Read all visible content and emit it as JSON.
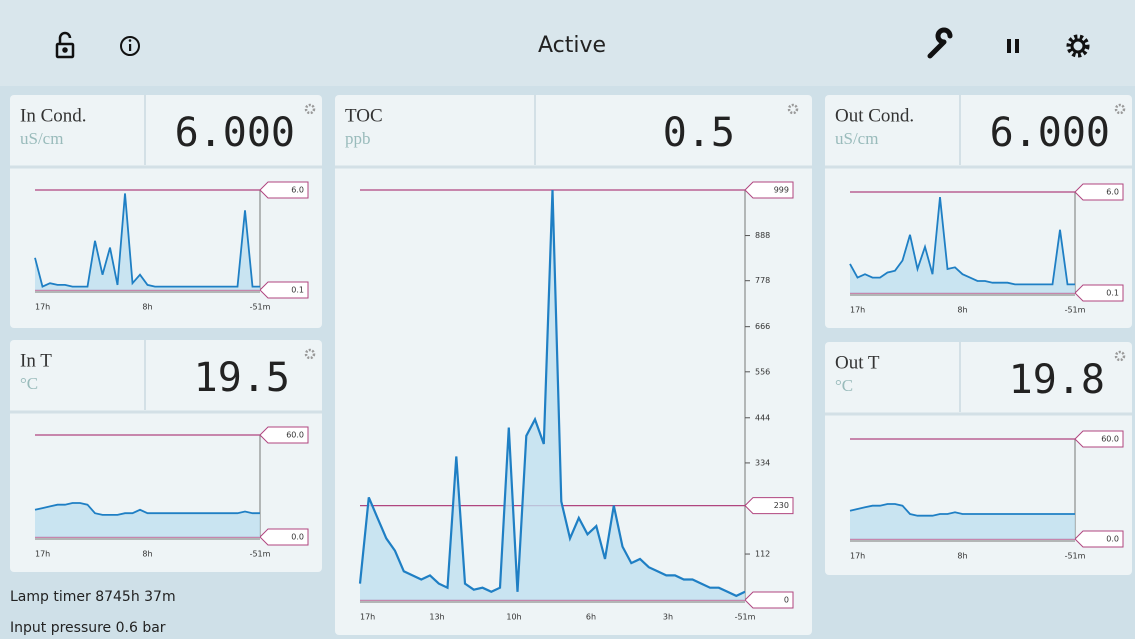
{
  "header": {
    "title": "Active"
  },
  "panels": [
    {
      "label": "In Cond.",
      "unit": "uS/cm",
      "value": "6.000",
      "chart": {
        "type": "line",
        "color": "#1f7fc4",
        "ylim": [
          0.1,
          6.0
        ],
        "yticks": [
          {
            "value": 6.0,
            "label": "6.0"
          },
          0.1
        ],
        "x_labels": [
          "17h",
          "8h",
          "-51m"
        ],
        "values": [
          2.0,
          0.3,
          0.5,
          0.4,
          0.4,
          0.3,
          0.3,
          0.3,
          3.0,
          1.0,
          2.6,
          0.4,
          5.8,
          0.5,
          1.0,
          0.4,
          0.3,
          0.3,
          0.3,
          0.3,
          0.3,
          0.3,
          0.3,
          0.3,
          0.3,
          0.3,
          0.3,
          0.3,
          4.8,
          0.3,
          0.3
        ]
      }
    },
    {
      "label": "In T",
      "unit": "°C",
      "value": "19.5",
      "chart": {
        "type": "line",
        "color": "#1f7fc4",
        "ylim": [
          0,
          60
        ],
        "yticks": [
          {
            "value": 60,
            "label": "60.0"
          },
          {
            "value": 0,
            "label": "0.0"
          }
        ],
        "x_labels": [
          "17h",
          "8h",
          "-51m"
        ],
        "values": [
          16,
          17,
          18,
          19,
          19,
          20,
          20,
          19,
          14,
          13,
          13,
          13,
          14,
          14,
          16,
          14,
          14,
          14,
          14,
          14,
          14,
          14,
          14,
          14,
          14,
          14,
          14,
          14,
          15,
          14,
          14
        ]
      }
    },
    {
      "label": "TOC",
      "unit": "ppb",
      "value": "0.5",
      "chart": {
        "type": "line",
        "color": "#1f7fc4",
        "ylim": [
          0,
          999
        ],
        "yticks": [
          999,
          888,
          778,
          666,
          556,
          444,
          334,
          112,
          0
        ],
        "alarm_limit": 230,
        "x_labels": [
          "17h",
          "13h",
          "10h",
          "6h",
          "3h",
          "-51m"
        ],
        "values": [
          40,
          250,
          200,
          150,
          120,
          70,
          60,
          50,
          60,
          40,
          30,
          350,
          40,
          25,
          30,
          20,
          30,
          420,
          20,
          400,
          440,
          380,
          999,
          240,
          150,
          200,
          160,
          180,
          100,
          230,
          130,
          90,
          100,
          80,
          70,
          60,
          60,
          50,
          50,
          40,
          30,
          30,
          20,
          10,
          20
        ]
      }
    },
    {
      "label": "Out Cond.",
      "unit": "uS/cm",
      "value": "6.000",
      "chart": {
        "type": "line",
        "color": "#1f7fc4",
        "ylim": [
          0.1,
          6.0
        ],
        "yticks": [
          {
            "value": 6.0,
            "label": "6.0"
          },
          0.1
        ],
        "x_labels": [
          "17h",
          "8h",
          "-51m"
        ],
        "values": [
          1.8,
          1.0,
          1.2,
          1.0,
          1.0,
          1.3,
          1.4,
          2.0,
          3.5,
          1.5,
          2.8,
          1.2,
          5.7,
          1.5,
          1.6,
          1.2,
          1.0,
          0.8,
          0.8,
          0.7,
          0.7,
          0.7,
          0.6,
          0.6,
          0.6,
          0.6,
          0.6,
          0.6,
          3.8,
          0.6,
          0.6
        ]
      }
    },
    {
      "label": "Out T",
      "unit": "°C",
      "value": "19.8",
      "chart": {
        "type": "line",
        "color": "#1f7fc4",
        "ylim": [
          0,
          60
        ],
        "yticks": [
          {
            "value": 60,
            "label": "60.0"
          },
          {
            "value": 0,
            "label": "0.0"
          }
        ],
        "x_labels": [
          "17h",
          "8h",
          "-51m"
        ],
        "values": [
          17,
          18,
          19,
          20,
          20,
          21,
          21,
          20,
          15,
          14,
          14,
          14,
          15,
          15,
          16,
          15,
          15,
          15,
          15,
          15,
          15,
          15,
          15,
          15,
          15,
          15,
          15,
          15,
          15,
          15,
          15
        ]
      }
    }
  ],
  "footer": {
    "lamp_timer": "Lamp timer 8745h 37m",
    "input_pressure": "Input pressure 0.6 bar"
  }
}
